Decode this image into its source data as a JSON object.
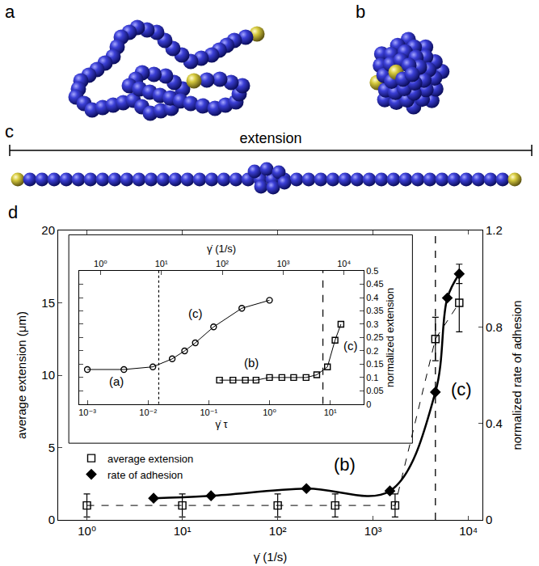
{
  "panel_labels": {
    "a": "a",
    "b": "b",
    "c": "c",
    "d": "d"
  },
  "extension_label": "extension",
  "chart_data": [
    {
      "type": "scatter",
      "x_label": "γ̇ (1/s)",
      "y_label": "average extension (μm)",
      "y2_label": "normalized rate of adhesion",
      "log": "x",
      "grid": false,
      "legend": "lower left",
      "xlim": [
        0.5,
        14000
      ],
      "xticks": [
        {
          "value": 1,
          "label": "10⁰"
        },
        {
          "value": 10,
          "label": "10¹"
        },
        {
          "value": 100,
          "label": "10²"
        },
        {
          "value": 1000,
          "label": "10³"
        },
        {
          "value": 10000,
          "label": "10⁴"
        }
      ],
      "ylim": [
        0,
        20
      ],
      "yticks": [
        0,
        5,
        10,
        15,
        20
      ],
      "y2lim": [
        0,
        1.2
      ],
      "y2ticks": [
        0,
        0.4,
        0.8,
        1.2
      ],
      "series": [
        {
          "name": "average extension",
          "color": "#000000",
          "marker": "square-open",
          "line_style": "dash",
          "x": [
            1,
            10,
            100,
            400,
            1700,
            4500,
            8000
          ],
          "values": [
            1.0,
            1.0,
            1.0,
            1.0,
            1.0,
            12.5,
            15.0
          ],
          "error": [
            0.8,
            0.8,
            0.8,
            0.8,
            0.8,
            1.5,
            2.0
          ]
        },
        {
          "name": "rate of adhesion",
          "axis": "y2",
          "color": "#000000",
          "marker": "diamond",
          "line_style": "solid",
          "x": [
            5,
            20,
            200,
            1500,
            4500,
            6000,
            8000
          ],
          "values": [
            0.09,
            0.1,
            0.13,
            0.12,
            0.53,
            0.92,
            1.02
          ],
          "error": [
            null,
            null,
            null,
            null,
            null,
            null,
            0.04
          ]
        }
      ],
      "vertical_lines": [
        {
          "x": 4500,
          "line_style": "dash"
        }
      ],
      "annotations": [
        {
          "text": "(b)",
          "x": 500,
          "y": 3.8
        },
        {
          "text": "(c)",
          "x": 8500,
          "y": 9
        }
      ]
    },
    {
      "type": "scatter",
      "x_label": "γ̇ τ",
      "x2_label": "γ̇ (1/s)",
      "y_label": "normalized extension",
      "log": "x",
      "grid": false,
      "xlim": [
        0.00074,
        35.5
      ],
      "xticks": [
        {
          "value": 0.001,
          "label": "10⁻³"
        },
        {
          "value": 0.01,
          "label": "10⁻²"
        },
        {
          "value": 0.1,
          "label": "10⁻¹"
        },
        {
          "value": 1,
          "label": "10⁰"
        },
        {
          "value": 10,
          "label": "10¹"
        }
      ],
      "x2lim": [
        0.45,
        21000
      ],
      "x2ticks": [
        {
          "value": 1,
          "label": "10⁰"
        },
        {
          "value": 10,
          "label": "10¹"
        },
        {
          "value": 100,
          "label": "10²"
        },
        {
          "value": 1000,
          "label": "10³"
        },
        {
          "value": 10000,
          "label": "10⁴"
        }
      ],
      "ylim": [
        0,
        0.5
      ],
      "yticks": [
        0,
        0.05,
        0.1,
        0.15,
        0.2,
        0.25,
        0.3,
        0.35,
        0.4,
        0.45,
        0.5
      ],
      "series": [
        {
          "color": "#000000",
          "marker": "circle-open",
          "line_style": "solid",
          "x": [
            0.001,
            0.004,
            0.012,
            0.025,
            0.04,
            0.06,
            0.12,
            0.35,
            1.0
          ],
          "values": [
            0.13,
            0.13,
            0.14,
            0.17,
            0.2,
            0.23,
            0.29,
            0.36,
            0.39
          ]
        },
        {
          "color": "#000000",
          "marker": "square-open",
          "line_style": "solid",
          "x": [
            0.15,
            0.25,
            0.4,
            0.6,
            1,
            1.6,
            2.5,
            4,
            6,
            9,
            12,
            15
          ],
          "values": [
            0.09,
            0.09,
            0.09,
            0.09,
            0.1,
            0.1,
            0.1,
            0.1,
            0.11,
            0.14,
            0.24,
            0.3
          ]
        }
      ],
      "vertical_lines": [
        {
          "x": 0.015,
          "line_style": "dot"
        },
        {
          "x": 4500,
          "axis": "x2",
          "line_style": "dash"
        }
      ],
      "annotations": [
        {
          "text": "(a)",
          "x": 0.003,
          "y": 0.085
        },
        {
          "text": "(c)",
          "x": 0.06,
          "y": 0.34
        },
        {
          "text": "(b)",
          "x": 0.5,
          "y": 0.155
        },
        {
          "text": "(c)",
          "x": 22,
          "y": 0.22
        }
      ]
    }
  ]
}
